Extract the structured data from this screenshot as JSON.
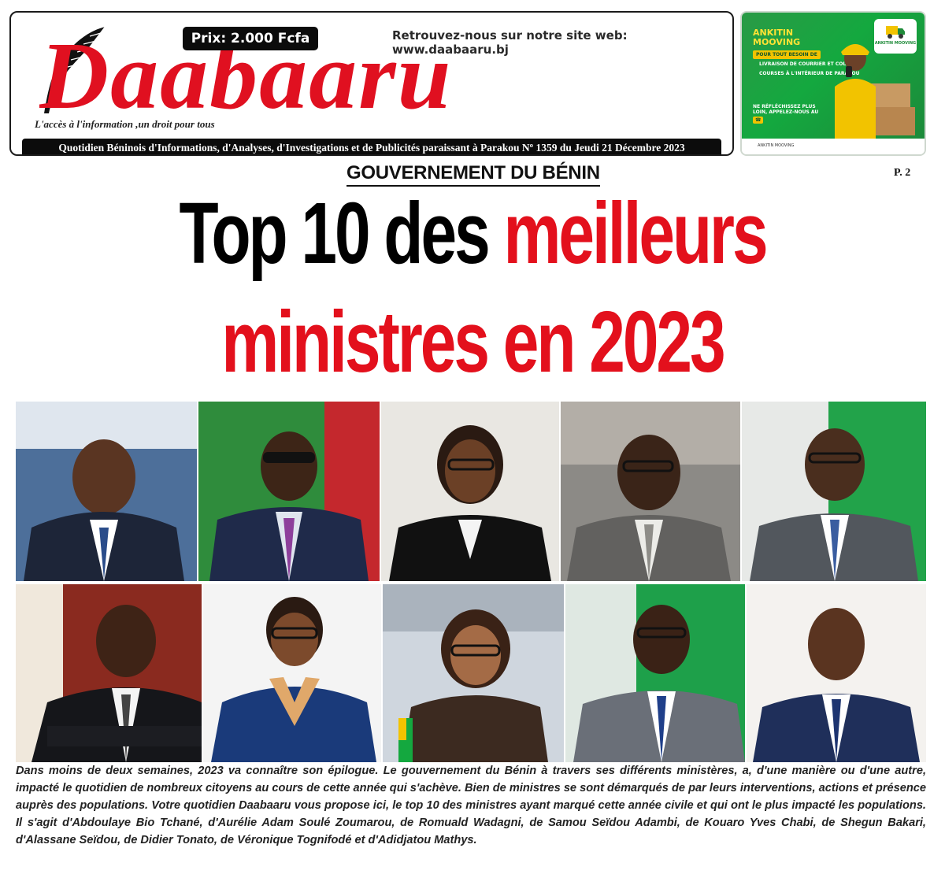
{
  "masthead": {
    "price": "Prix: 2.000 Fcfa",
    "site": "Retrouvez-nous sur notre site web: www.daabaaru.bj",
    "logo": "Daabaaru",
    "tagline": "L'accès à l'information ,un droit pour tous",
    "info_bar": "Quotidien Béninois d'Informations, d'Analyses, d'Investigations et de Publicités paraissant à Parakou Nº 1359 du Jeudi 21 Décembre 2023"
  },
  "ad": {
    "title_1": "ANKITIN",
    "title_2": "MOOVING",
    "pill": "POUR TOUT BESOIN DE",
    "items": [
      "LIVRAISON DE COURRIER ET COLIS",
      "COURSES À L'INTÉRIEUR DE PARAKOU"
    ],
    "callout": "NE RÉFLÉCHISSEZ PLUS LOIN, APPELEZ-NOUS AU",
    "logo_text": "ANKITIN MOOVING",
    "footer": "ANKITIN MOOVING"
  },
  "article": {
    "kicker": "GOUVERNEMENT DU BÉNIN",
    "page_ref": "P. 2",
    "headline_1_black": "Top 10 des ",
    "headline_1_red": "meilleurs",
    "headline_2_red": "ministres en 2023",
    "body": "Dans moins de deux semaines, 2023 va connaître son épilogue. Le gouvernement du Bénin à travers ses différents ministères, a, d'une manière ou d'une autre, impacté le quotidien de nombreux citoyens au cours de cette année qui s'achève. Bien de ministres se sont démarqués de par leurs interventions, actions et présence auprès des populations. Votre quotidien Daabaaru vous propose ici, le top 10 des ministres ayant marqué cette année civile et qui ont le plus impacté les populations. Il s'agit d'Abdoulaye Bio Tchané, d'Aurélie Adam Soulé Zoumarou, de Romuald Wadagni, de Samou Seïdou Adambi, de Kouaro Yves Chabi, de Shegun Bakari, d'Alassane Seïdou, de Didier Tonato, de Véronique Tognifodé et d'Adidjatou Mathys."
  },
  "colors": {
    "brand_red": "#e3101c",
    "ink": "#111111",
    "ad_green": "#14a83f",
    "ad_yellow": "#f2c300"
  }
}
